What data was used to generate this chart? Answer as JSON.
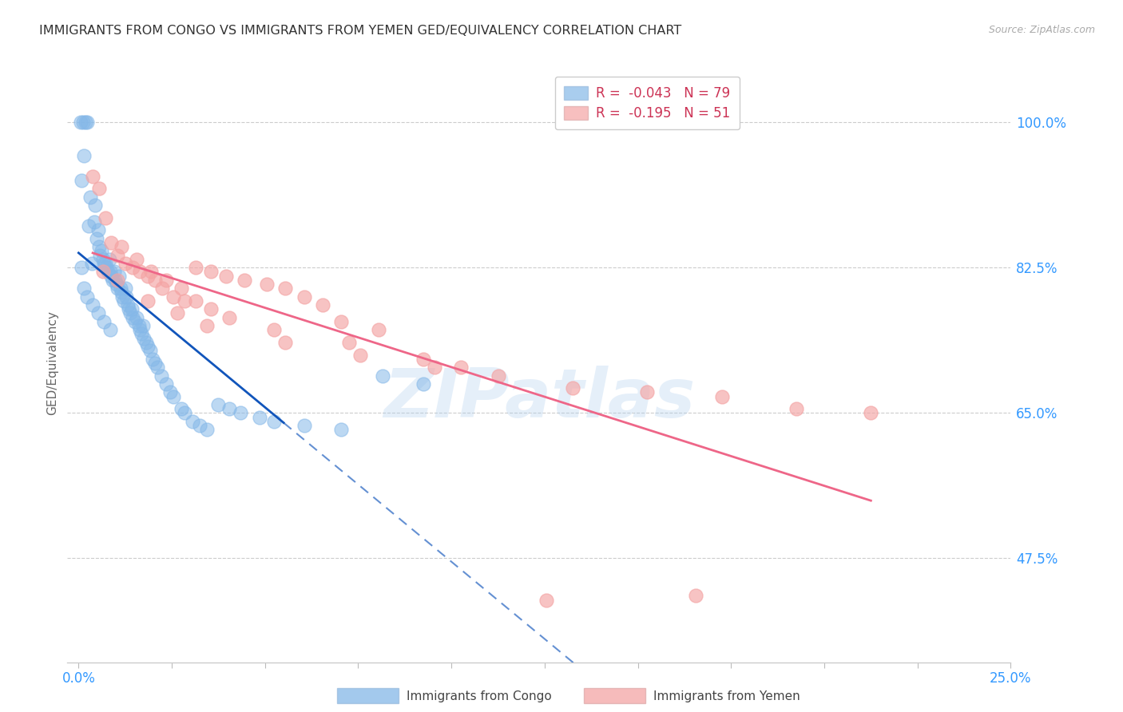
{
  "title": "IMMIGRANTS FROM CONGO VS IMMIGRANTS FROM YEMEN GED/EQUIVALENCY CORRELATION CHART",
  "source": "Source: ZipAtlas.com",
  "ylabel": "GED/Equivalency",
  "xlim": [
    -0.3,
    25.0
  ],
  "ylim": [
    35.0,
    107.0
  ],
  "yticks": [
    47.5,
    65.0,
    82.5,
    100.0
  ],
  "ytick_labels": [
    "47.5%",
    "65.0%",
    "82.5%",
    "100.0%"
  ],
  "xticks": [
    0.0,
    2.5,
    5.0,
    7.5,
    10.0,
    12.5,
    15.0,
    17.5,
    20.0,
    22.5,
    25.0
  ],
  "congo_R": -0.043,
  "congo_N": 79,
  "yemen_R": -0.195,
  "yemen_N": 51,
  "congo_color": "#85B8E8",
  "yemen_color": "#F4A4A4",
  "congo_line_color": "#1155BB",
  "yemen_line_color": "#EE6688",
  "background_color": "#FFFFFF",
  "grid_color": "#CCCCCC",
  "axis_color": "#3399FF",
  "watermark_text": "ZIPatlas",
  "watermark_color": "#AACCEE",
  "congo_x": [
    0.05,
    0.12,
    0.18,
    0.08,
    0.22,
    0.28,
    0.15,
    0.35,
    0.32,
    0.42,
    0.48,
    0.45,
    0.52,
    0.55,
    0.58,
    0.62,
    0.65,
    0.68,
    0.72,
    0.75,
    0.78,
    0.82,
    0.85,
    0.88,
    0.92,
    0.95,
    0.98,
    1.02,
    1.05,
    1.08,
    1.12,
    1.15,
    1.18,
    1.22,
    1.25,
    1.28,
    1.32,
    1.35,
    1.38,
    1.42,
    1.45,
    1.52,
    1.55,
    1.62,
    1.65,
    1.68,
    1.72,
    1.75,
    1.82,
    1.85,
    1.92,
    1.98,
    2.05,
    2.12,
    2.22,
    2.35,
    2.45,
    2.55,
    2.75,
    2.85,
    3.05,
    3.25,
    3.45,
    3.75,
    4.05,
    4.35,
    4.85,
    5.25,
    6.05,
    7.05,
    8.15,
    9.25,
    0.08,
    0.15,
    0.22,
    0.38,
    0.52,
    0.68,
    0.85
  ],
  "congo_y": [
    100.0,
    100.0,
    100.0,
    93.0,
    100.0,
    87.5,
    96.0,
    83.0,
    91.0,
    88.0,
    86.0,
    90.0,
    87.0,
    85.0,
    84.0,
    84.5,
    83.5,
    83.0,
    83.0,
    82.5,
    82.0,
    83.5,
    82.0,
    81.5,
    81.0,
    82.0,
    81.0,
    80.5,
    80.0,
    81.5,
    80.0,
    79.5,
    79.0,
    78.5,
    80.0,
    79.0,
    78.0,
    77.5,
    77.0,
    77.5,
    76.5,
    76.0,
    76.5,
    75.5,
    75.0,
    74.5,
    75.5,
    74.0,
    73.5,
    73.0,
    72.5,
    71.5,
    71.0,
    70.5,
    69.5,
    68.5,
    67.5,
    67.0,
    65.5,
    65.0,
    64.0,
    63.5,
    63.0,
    66.0,
    65.5,
    65.0,
    64.5,
    64.0,
    63.5,
    63.0,
    69.5,
    68.5,
    82.5,
    80.0,
    79.0,
    78.0,
    77.0,
    76.0,
    75.0
  ],
  "yemen_x": [
    0.38,
    0.55,
    0.72,
    0.88,
    1.05,
    1.25,
    1.45,
    1.65,
    1.85,
    2.05,
    2.25,
    2.55,
    2.85,
    3.15,
    3.55,
    3.95,
    4.45,
    5.05,
    5.55,
    6.05,
    6.55,
    7.05,
    8.05,
    1.15,
    1.55,
    1.95,
    2.35,
    2.75,
    3.15,
    3.55,
    4.05,
    5.25,
    7.25,
    9.25,
    10.25,
    11.25,
    13.25,
    15.25,
    17.25,
    19.25,
    21.25,
    0.65,
    1.05,
    1.85,
    2.65,
    3.45,
    5.55,
    7.55,
    9.55,
    12.55,
    16.55
  ],
  "yemen_y": [
    93.5,
    92.0,
    88.5,
    85.5,
    84.0,
    83.0,
    82.5,
    82.0,
    81.5,
    81.0,
    80.0,
    79.0,
    78.5,
    82.5,
    82.0,
    81.5,
    81.0,
    80.5,
    80.0,
    79.0,
    78.0,
    76.0,
    75.0,
    85.0,
    83.5,
    82.0,
    81.0,
    80.0,
    78.5,
    77.5,
    76.5,
    75.0,
    73.5,
    71.5,
    70.5,
    69.5,
    68.0,
    67.5,
    67.0,
    65.5,
    65.0,
    82.0,
    81.0,
    78.5,
    77.0,
    75.5,
    73.5,
    72.0,
    70.5,
    42.5,
    43.0
  ]
}
